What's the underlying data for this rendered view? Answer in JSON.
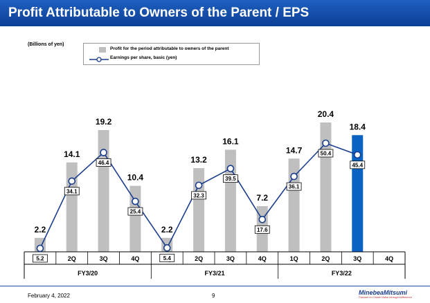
{
  "page": {
    "title": "Profit Attributable to Owners of the Parent / EPS",
    "footer_date": "February 4, 2022",
    "footer_page": "9",
    "logo_name": "MinebeaMitsumi",
    "logo_tagline": "Passion to Create Value through Difference"
  },
  "chart_data": {
    "type": "bar+line",
    "unit_label": "(Billions of yen)",
    "categories": [
      "1Q",
      "2Q",
      "3Q",
      "4Q",
      "1Q",
      "2Q",
      "3Q",
      "4Q",
      "1Q",
      "2Q",
      "3Q",
      "4Q"
    ],
    "groups": [
      {
        "label": "FY3/20",
        "start": 0,
        "end": 3
      },
      {
        "label": "FY3/21",
        "start": 4,
        "end": 7
      },
      {
        "label": "FY3/22",
        "start": 8,
        "end": 11
      }
    ],
    "series": [
      {
        "name": "Profit for the period attributable to owners of the parent",
        "type": "bar",
        "values": [
          2.2,
          14.1,
          19.2,
          10.4,
          2.2,
          13.2,
          16.1,
          7.2,
          14.7,
          20.4,
          18.4,
          null
        ],
        "labels": [
          "2.2",
          "14.1",
          "19.2",
          "10.4",
          "2.2",
          "13.2",
          "16.1",
          "7.2",
          "14.7",
          "20.4",
          "18.4",
          ""
        ],
        "color": "#bfbfbf",
        "highlight_index": 10,
        "highlight_color": "#0a63c3"
      },
      {
        "name": "Earnings per share, basic (yen)",
        "type": "line",
        "values": [
          5.2,
          34.1,
          46.4,
          25.4,
          5.4,
          32.3,
          39.5,
          17.6,
          36.1,
          50.4,
          45.4,
          null
        ],
        "labels": [
          "5.2",
          "34.1",
          "46.4",
          "25.4",
          "5.4",
          "32.3",
          "39.5",
          "17.6",
          "36.1",
          "50.4",
          "45.4",
          ""
        ],
        "color": "#1a3d8f"
      }
    ]
  }
}
